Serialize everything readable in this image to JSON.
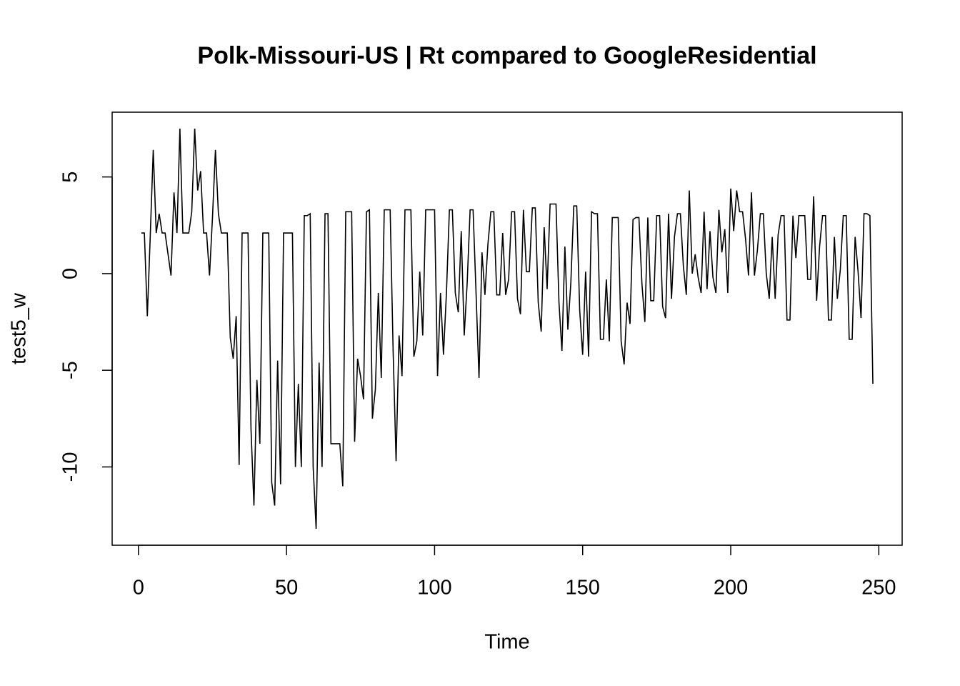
{
  "chart_data": {
    "type": "line",
    "title": "Polk-Missouri-US | Rt compared to GoogleResidential",
    "x_label": "Time",
    "y_label": "test5_w",
    "color": "#000000",
    "x": [
      1,
      2,
      3,
      4,
      5,
      6,
      7,
      8,
      9,
      10,
      11,
      12,
      13,
      14,
      15,
      16,
      17,
      18,
      19,
      20,
      21,
      22,
      23,
      24,
      25,
      26,
      27,
      28,
      29,
      30,
      31,
      32,
      33,
      34,
      35,
      36,
      37,
      38,
      39,
      40,
      41,
      42,
      43,
      44,
      45,
      46,
      47,
      48,
      49,
      50,
      51,
      52,
      53,
      54,
      55,
      56,
      57,
      58,
      59,
      60,
      61,
      62,
      63,
      64,
      65,
      66,
      67,
      68,
      69,
      70,
      71,
      72,
      73,
      74,
      75,
      76,
      77,
      78,
      79,
      80,
      81,
      82,
      83,
      84,
      85,
      86,
      87,
      88,
      89,
      90,
      91,
      92,
      93,
      94,
      95,
      96,
      97,
      98,
      99,
      100,
      101,
      102,
      103,
      104,
      105,
      106,
      107,
      108,
      109,
      110,
      111,
      112,
      113,
      114,
      115,
      116,
      117,
      118,
      119,
      120,
      121,
      122,
      123,
      124,
      125,
      126,
      127,
      128,
      129,
      130,
      131,
      132,
      133,
      134,
      135,
      136,
      137,
      138,
      139,
      140,
      141,
      142,
      143,
      144,
      145,
      146,
      147,
      148,
      149,
      150,
      151,
      152,
      153,
      154,
      155,
      156,
      157,
      158,
      159,
      160,
      161,
      162,
      163,
      164,
      165,
      166,
      167,
      168,
      169,
      170,
      171,
      172,
      173,
      174,
      175,
      176,
      177,
      178,
      179,
      180,
      181,
      182,
      183,
      184,
      185,
      186,
      187,
      188,
      189,
      190,
      191,
      192,
      193,
      194,
      195,
      196,
      197,
      198,
      199,
      200,
      201,
      202,
      203,
      204,
      205,
      206,
      207,
      208,
      209,
      210,
      211,
      212,
      213,
      214,
      215,
      216,
      217,
      218,
      219,
      220,
      221,
      222,
      223,
      224,
      225,
      226,
      227,
      228,
      229,
      230,
      231,
      232,
      233,
      234,
      235,
      236,
      237,
      238,
      239,
      240,
      241,
      242,
      243,
      244,
      245,
      246,
      247,
      248
    ],
    "values": [
      2.1,
      2.1,
      -2.2,
      2,
      6.4,
      2.1,
      3.1,
      2.1,
      2.1,
      1,
      -0.1,
      4.2,
      2.1,
      7.5,
      2.1,
      2.1,
      2.1,
      3.2,
      7.5,
      4.3,
      5.3,
      2.1,
      2.1,
      -0.1,
      2.9,
      6.4,
      3.1,
      2.1,
      2.1,
      2.1,
      -3.3,
      -4.4,
      -2.2,
      -9.9,
      2.1,
      2.1,
      2.1,
      -8,
      -12,
      -5.5,
      -8.8,
      2.1,
      2.1,
      2.1,
      -10.8,
      -12,
      -4.5,
      -10.9,
      2.1,
      2.1,
      2.1,
      2.1,
      -10,
      -5.7,
      -10,
      3,
      3,
      3.1,
      -10,
      -13.2,
      -4.6,
      -10,
      3.1,
      3.1,
      -8.8,
      -8.8,
      -8.8,
      -8.8,
      -11,
      3.2,
      3.2,
      3.2,
      -8.7,
      -4.4,
      -5.3,
      -6.5,
      3.2,
      3.3,
      -7.5,
      -6,
      -1,
      -5.4,
      3.3,
      3.3,
      3.3,
      -4,
      -9.7,
      -3.2,
      -5.3,
      3.3,
      3.3,
      3.3,
      -4.3,
      -3.5,
      0.1,
      -3.2,
      3.3,
      3.3,
      3.3,
      3.3,
      -5.3,
      -1,
      -4.2,
      -1,
      3.3,
      3.3,
      -1,
      -2,
      2.2,
      -3.2,
      -0.5,
      3.3,
      3.3,
      -1,
      -5.4,
      1.1,
      -1.1,
      1.5,
      3.2,
      3.2,
      -1.1,
      -1.1,
      2.1,
      -1.1,
      -0.3,
      3.2,
      3.2,
      -1.3,
      -2.1,
      3.3,
      0.1,
      0.1,
      3.4,
      3.4,
      -1.5,
      -3,
      2.4,
      -0.8,
      3.6,
      3.6,
      3.6,
      -1.5,
      -4,
      1.4,
      -2.9,
      -0.5,
      3.5,
      3.5,
      -1.9,
      -4.2,
      0.1,
      -4.3,
      3.2,
      3.1,
      3.1,
      -3.4,
      -3.4,
      -0.3,
      -3.5,
      2.9,
      2.9,
      2.9,
      -3.5,
      -4.7,
      -1.5,
      -2.6,
      2.8,
      2.9,
      2.9,
      -0.5,
      -2.5,
      2.9,
      -1.4,
      -1.4,
      3,
      3,
      -1.7,
      -2.3,
      3.1,
      -1.3,
      1.9,
      3.1,
      3.1,
      0.4,
      -1.1,
      4.3,
      0,
      1,
      -0.2,
      -1,
      3.2,
      -0.8,
      2.2,
      -0.2,
      -1,
      3.3,
      1.1,
      2.3,
      -1,
      4.4,
      2.2,
      4.3,
      3.2,
      3.2,
      1.8,
      -0.1,
      4.2,
      -0.1,
      1.2,
      3.1,
      3.1,
      0,
      -1.3,
      1.9,
      -1.3,
      2,
      3,
      3,
      -2.4,
      -2.4,
      3,
      0.8,
      3,
      3,
      3,
      -0.3,
      -0.3,
      4,
      -1.4,
      1.4,
      3,
      3,
      -2.4,
      -2.4,
      1.9,
      -1.3,
      0.2,
      3,
      3,
      -3.4,
      -3.4,
      1.9,
      0.1,
      -2.3,
      3.1,
      3.1,
      3,
      -5.7
    ],
    "xlim": [
      -8.88,
      257.88
    ],
    "xticks": [
      0,
      50,
      100,
      150,
      200,
      250
    ],
    "ylim": [
      -14.05,
      8.35
    ],
    "yticks": [
      -10,
      -5,
      0,
      5
    ]
  }
}
